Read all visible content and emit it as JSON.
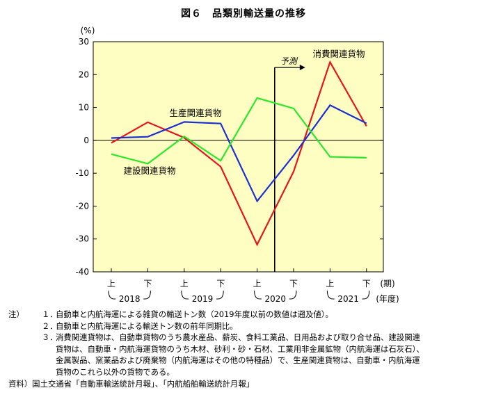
{
  "title": "図６　品類別輸送量の推移",
  "chart_data": {
    "type": "line",
    "y_unit": "(%)",
    "ylim": [
      -40,
      30
    ],
    "yticks": [
      30,
      20,
      10,
      0,
      -10,
      -20,
      -30,
      -40
    ],
    "x_halves": [
      "上",
      "下",
      "上",
      "下",
      "上",
      "下",
      "上",
      "下"
    ],
    "x_half_unit": "(期)",
    "years": [
      "2018",
      "2019",
      "2020",
      "2021"
    ],
    "year_unit": "(年度)",
    "forecast_label": "予測",
    "series": [
      {
        "name": "消費関連貨物",
        "color": "#e8141c",
        "values": [
          -0.8,
          5.5,
          0.8,
          -8.0,
          -31.7,
          -9.5,
          23.8,
          4.3
        ]
      },
      {
        "name": "生産関連貨物",
        "color": "#1c2fcf",
        "values": [
          0.7,
          1.1,
          5.6,
          5.1,
          -18.5,
          -4.6,
          10.7,
          5.2
        ]
      },
      {
        "name": "建設関連貨物",
        "color": "#2be82b",
        "values": [
          -4.2,
          -7.1,
          1.2,
          -6.2,
          12.9,
          9.7,
          -5.0,
          -5.3
        ]
      }
    ]
  },
  "notes": {
    "label": "注）",
    "items": [
      {
        "num": "１．",
        "lines": [
          "自動車と内航海運による雑貨の輸送トン数（2019年度以前の数値は遡及値）。"
        ]
      },
      {
        "num": "２．",
        "lines": [
          "自動車と内航海運による輸送トン数の前年同期比。"
        ]
      },
      {
        "num": "３．",
        "lines": [
          "消費関連貨物は、自動車貨物のうち農水産品、薪炭、食料工業品、日用品および取り合せ品、建設関連",
          "貨物は、自動車・内航海運貨物のうち木材、砂利・砂・石材、工業用非金属鉱物（内航海運は石灰石）、",
          "金属製品、窯業品および廃棄物（内航海運はその他の特種品）で、生産関連貨物は、自動車・内航海運",
          "貨物のこれら以外の貨物である。"
        ]
      }
    ],
    "source": "資料）国土交通省「自動車輸送統計月報」、「内航船舶輸送統計月報」"
  }
}
